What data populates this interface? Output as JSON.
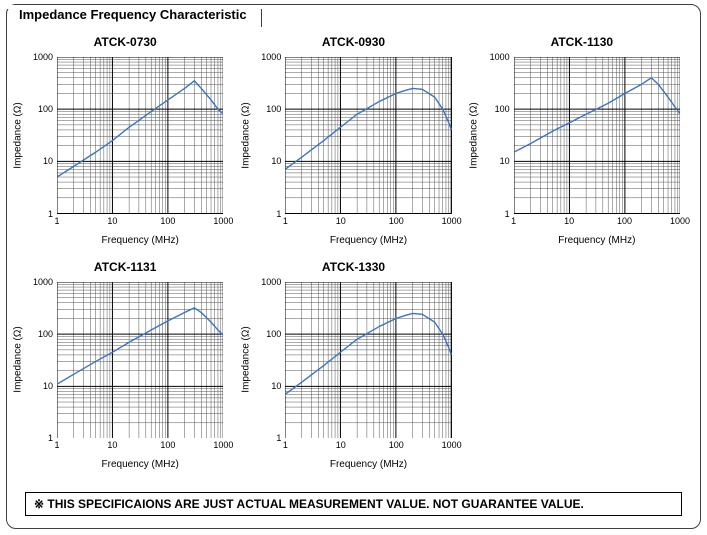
{
  "panel": {
    "section_title": "Impedance Frequency Characteristic",
    "footnote": "※ THIS SPECIFICAIONS ARE JUST ACTUAL MEASUREMENT VALUE. NOT GUARANTEE VALUE."
  },
  "common": {
    "x_label": "Frequency (MHz)",
    "y_label": "Impedance (Ω)",
    "x_ticks": [
      1,
      10,
      100,
      1000
    ],
    "y_ticks": [
      1,
      10,
      100,
      1000
    ],
    "xlim": [
      1,
      1000
    ],
    "ylim": [
      1,
      1000
    ],
    "scale": "log-log",
    "line_color": "#3a74c4",
    "line_width": 1.4,
    "grid_major_color": "#000000",
    "grid_major_width": 1,
    "grid_minor_color": "#555555",
    "grid_minor_width": 0.5,
    "background_color": "#ffffff",
    "title_fontsize": 12,
    "tick_fontsize": 9,
    "axis_label_fontsize": 10
  },
  "rows": 2,
  "cols": 3,
  "charts": [
    {
      "title": "ATCK-0730",
      "series": {
        "x": [
          1,
          2,
          5,
          10,
          20,
          50,
          100,
          200,
          300,
          400,
          600,
          800,
          1000
        ],
        "y": [
          5,
          8,
          15,
          25,
          45,
          90,
          150,
          250,
          350,
          250,
          150,
          100,
          80
        ]
      }
    },
    {
      "title": "ATCK-0930",
      "series": {
        "x": [
          1,
          2,
          5,
          10,
          20,
          50,
          100,
          150,
          200,
          300,
          500,
          700,
          900,
          1000
        ],
        "y": [
          7,
          12,
          25,
          45,
          80,
          140,
          200,
          230,
          250,
          240,
          170,
          100,
          55,
          40
        ]
      }
    },
    {
      "title": "ATCK-1130",
      "series": {
        "x": [
          1,
          2,
          5,
          10,
          20,
          50,
          100,
          200,
          300,
          400,
          600,
          800,
          1000
        ],
        "y": [
          15,
          22,
          38,
          55,
          80,
          130,
          200,
          300,
          400,
          300,
          170,
          110,
          80
        ]
      }
    },
    {
      "title": "ATCK-1131",
      "series": {
        "x": [
          1,
          2,
          5,
          10,
          20,
          50,
          100,
          200,
          300,
          400,
          600,
          800,
          1000
        ],
        "y": [
          11,
          17,
          30,
          45,
          70,
          120,
          180,
          260,
          320,
          260,
          170,
          120,
          95
        ]
      }
    },
    {
      "title": "ATCK-1330",
      "series": {
        "x": [
          1,
          2,
          5,
          10,
          20,
          50,
          100,
          150,
          200,
          300,
          500,
          700,
          900,
          1000
        ],
        "y": [
          7,
          12,
          25,
          45,
          80,
          140,
          200,
          230,
          250,
          240,
          170,
          100,
          55,
          40
        ]
      }
    }
  ]
}
